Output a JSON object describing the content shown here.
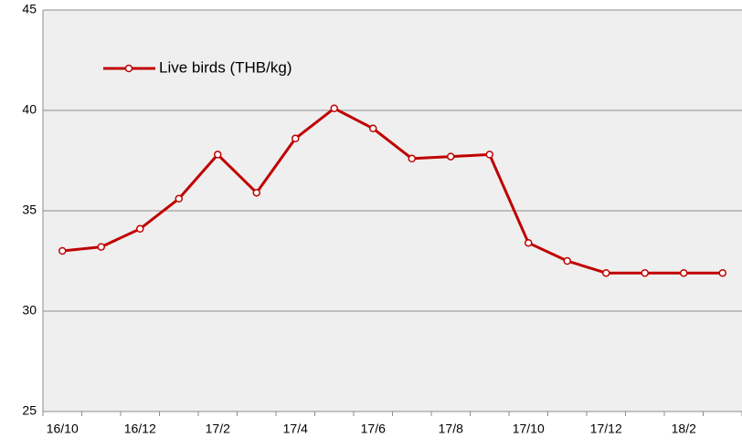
{
  "chart_data": {
    "type": "line",
    "categories": [
      "16/10",
      null,
      "16/12",
      null,
      "17/2",
      null,
      "17/4",
      null,
      "17/6",
      null,
      "17/8",
      null,
      "17/10",
      null,
      "17/12",
      null,
      "18/2",
      null
    ],
    "series": [
      {
        "name": "Live birds (THB/kg)",
        "color": "#c00000",
        "values": [
          33.0,
          33.2,
          34.1,
          35.6,
          37.8,
          35.9,
          38.6,
          40.1,
          39.1,
          37.6,
          37.7,
          37.8,
          33.4,
          32.5,
          31.9,
          31.9,
          31.9,
          31.9
        ]
      }
    ],
    "ylim": [
      25,
      45
    ],
    "yticks": [
      25,
      30,
      35,
      40,
      45
    ],
    "grid": true,
    "legend": "top-left"
  }
}
